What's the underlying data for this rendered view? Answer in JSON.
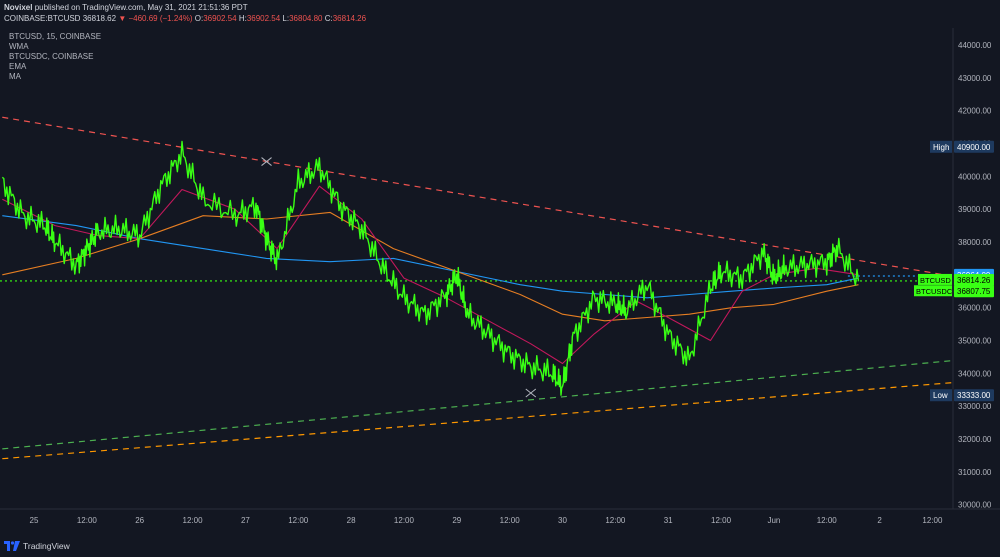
{
  "header": {
    "author": "Novixel",
    "published": "published on TradingView.com, May 31, 2021 21:51:36 PDT",
    "symbol": "COINBASE:BTCUSD",
    "last": "36818.62",
    "change_arrow": "▼",
    "change": "−460.69 (−1.24%)",
    "o_label": "O:",
    "o": "36902.54",
    "h_label": "H:",
    "h": "36902.54",
    "l_label": "L:",
    "l": "36804.80",
    "c_label": "C:",
    "c": "36814.26"
  },
  "legend": {
    "main": "BTCUSD, 15, COINBASE",
    "items": [
      "WMA",
      "BTCUSDC, COINBASE",
      "EMA",
      "MA"
    ]
  },
  "markers": {
    "high_label": "High",
    "high_value": "40900.00",
    "low_label": "Low",
    "low_value": "33333.00",
    "btcusd_label": "BTCUSD",
    "btcusd_value": "36814.26",
    "btcusdc_label": "BTCUSDC",
    "btcusdc_value": "36807.75",
    "tag1": "36964.00",
    "tag2": "36857.00"
  },
  "footer": {
    "brand": "TradingView"
  },
  "colors": {
    "background": "#131722",
    "price": "#39ff14",
    "wma": "#c2185b",
    "ema": "#e67e22",
    "ma": "#2196f3",
    "resistance": "#ef5350",
    "support_green": "#4caf50",
    "support_orange": "#ff9800"
  },
  "chart_data": {
    "type": "line",
    "y_ticks": [
      "44000.00",
      "43000.00",
      "42000.00",
      "41000.00",
      "40000.00",
      "39000.00",
      "38000.00",
      "37000.00",
      "36000.00",
      "35000.00",
      "34000.00",
      "33000.00",
      "32000.00",
      "31000.00",
      "30000.00"
    ],
    "x_ticks": [
      "25",
      "12:00",
      "26",
      "12:00",
      "27",
      "12:00",
      "28",
      "12:00",
      "29",
      "12:00",
      "30",
      "12:00",
      "31",
      "12:00",
      "Jun",
      "12:00",
      "2",
      "12:00"
    ],
    "ylim": [
      29800,
      44500
    ],
    "xlim": [
      0,
      9.4
    ],
    "x_units": "days from May 25 00:00",
    "series": [
      {
        "name": "BTCUSD",
        "role": "price",
        "x": [
          -0.3,
          -0.1,
          0.1,
          0.2,
          0.4,
          0.5,
          0.6,
          0.8,
          1.0,
          1.2,
          1.4,
          1.6,
          1.9,
          2.1,
          2.2,
          2.3,
          2.5,
          2.7,
          2.9,
          3.1,
          3.3,
          3.5,
          3.7,
          3.9,
          4.0,
          4.1,
          4.3,
          4.5,
          4.7,
          4.9,
          5.0,
          5.1,
          5.3,
          5.5,
          5.6,
          5.8,
          6.0,
          6.2,
          6.4,
          6.5,
          6.7,
          6.9,
          7.0,
          7.1,
          7.3,
          7.5,
          7.6,
          7.8
        ],
        "y": [
          39800,
          38800,
          38500,
          38000,
          37300,
          37800,
          38300,
          38400,
          38200,
          39700,
          40700,
          39300,
          38800,
          39100,
          38100,
          37400,
          39800,
          40300,
          39100,
          38400,
          37200,
          36300,
          35800,
          36400,
          37000,
          35800,
          35200,
          34600,
          34200,
          34000,
          33600,
          35100,
          36300,
          36100,
          35900,
          36700,
          35200,
          34400,
          36600,
          37100,
          36900,
          37700,
          36900,
          37200,
          37300,
          37400,
          37800,
          36800
        ]
      },
      {
        "name": "WMA",
        "role": "wma",
        "x": [
          -0.3,
          0.2,
          0.6,
          1.0,
          1.4,
          1.9,
          2.3,
          2.7,
          3.1,
          3.5,
          3.9,
          4.3,
          4.7,
          5.0,
          5.3,
          5.7,
          6.0,
          6.4,
          6.7,
          7.0,
          7.4,
          7.8
        ],
        "y": [
          39300,
          38500,
          38200,
          38100,
          39600,
          39000,
          37800,
          39700,
          38700,
          36900,
          36300,
          35600,
          34900,
          34300,
          35200,
          36200,
          35700,
          35000,
          36500,
          37000,
          37200,
          37000
        ]
      },
      {
        "name": "EMA",
        "role": "ema",
        "x": [
          -0.3,
          0.4,
          1.0,
          1.6,
          2.2,
          2.8,
          3.4,
          4.0,
          4.6,
          5.0,
          5.4,
          5.8,
          6.2,
          6.6,
          7.0,
          7.5,
          7.8
        ],
        "y": [
          37000,
          37500,
          38100,
          38800,
          38700,
          38900,
          37800,
          37100,
          36400,
          35800,
          35600,
          35700,
          35800,
          36000,
          36100,
          36500,
          36700
        ]
      },
      {
        "name": "MA",
        "role": "ma",
        "x": [
          -0.3,
          0.4,
          1.0,
          1.6,
          2.2,
          2.8,
          3.4,
          4.0,
          4.6,
          5.0,
          5.4,
          5.8,
          6.2,
          6.6,
          7.0,
          7.5,
          7.8
        ],
        "y": [
          38800,
          38500,
          38100,
          37800,
          37500,
          37400,
          37500,
          37100,
          36700,
          36500,
          36400,
          36300,
          36400,
          36500,
          36600,
          36700,
          36900
        ]
      }
    ],
    "trendlines": [
      {
        "role": "resistance",
        "x": [
          -0.3,
          8.8
        ],
        "y": [
          41800,
          36900
        ]
      },
      {
        "role": "support_green",
        "x": [
          -0.3,
          9.4
        ],
        "y": [
          31700,
          34600
        ]
      },
      {
        "role": "support_orange",
        "x": [
          -0.3,
          9.4
        ],
        "y": [
          31400,
          33900
        ]
      }
    ],
    "horizontal_lines": [
      {
        "role": "price_dotted",
        "y": 36814
      },
      {
        "role": "tag_dotted",
        "y": 36964,
        "x_start": 7.7
      }
    ],
    "grid": false
  }
}
